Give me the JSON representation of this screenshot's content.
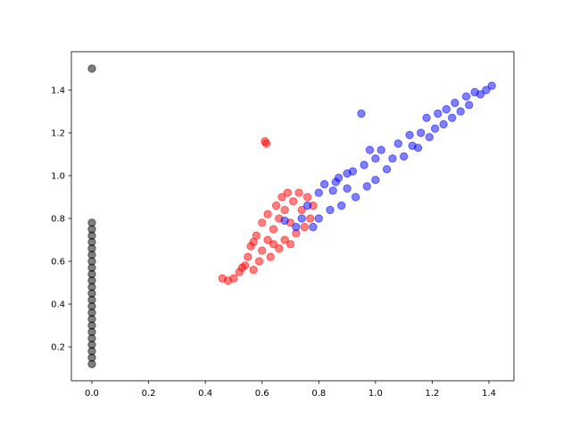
{
  "chart_data": {
    "type": "scatter",
    "xlim": [
      -0.0723,
      1.488
    ],
    "ylim": [
      0.042,
      1.579
    ],
    "xticks": [
      {
        "value": 0,
        "label": "0.0"
      },
      0.2,
      0.4,
      0.6,
      0.8,
      {
        "value": 1,
        "label": "1.0"
      },
      1.2,
      1.4
    ],
    "yticks": [
      0.2,
      0.4,
      0.6,
      0.8,
      {
        "value": 1,
        "label": "1.0"
      },
      1.2,
      1.4
    ],
    "alpha": 0.5,
    "series": [
      {
        "color": "#000000",
        "x": [
          0,
          0,
          0,
          0,
          0,
          0,
          0,
          0,
          0,
          0,
          0,
          0,
          0,
          0,
          0,
          0,
          0,
          0,
          0,
          0,
          0,
          0,
          0,
          0
        ],
        "y": [
          0.12,
          0.15,
          0.18,
          0.21,
          0.24,
          0.27,
          0.3,
          0.33,
          0.36,
          0.39,
          0.42,
          0.45,
          0.48,
          0.51,
          0.54,
          0.57,
          0.6,
          0.63,
          0.66,
          0.69,
          0.72,
          0.75,
          0.78,
          1.5
        ]
      },
      {
        "color": "#ff0000",
        "x": [
          0.46,
          0.48,
          0.5,
          0.52,
          0.54,
          0.55,
          0.56,
          0.57,
          0.58,
          0.59,
          0.6,
          0.6,
          0.62,
          0.62,
          0.63,
          0.64,
          0.65,
          0.66,
          0.66,
          0.67,
          0.68,
          0.68,
          0.69,
          0.7,
          0.7,
          0.71,
          0.72,
          0.73,
          0.74,
          0.75,
          0.76,
          0.77,
          0.78,
          0.61,
          0.615,
          0.53,
          0.57,
          0.64
        ],
        "y": [
          0.52,
          0.51,
          0.52,
          0.55,
          0.58,
          0.62,
          0.67,
          0.56,
          0.72,
          0.6,
          0.65,
          0.78,
          0.82,
          0.7,
          0.62,
          0.75,
          0.86,
          0.66,
          0.8,
          0.9,
          0.7,
          0.84,
          0.92,
          0.68,
          0.78,
          0.88,
          0.73,
          0.92,
          0.84,
          0.76,
          0.9,
          0.8,
          0.86,
          1.16,
          1.15,
          0.57,
          0.69,
          0.68
        ]
      },
      {
        "color": "#0000ff",
        "x": [
          0.68,
          0.72,
          0.74,
          0.76,
          0.78,
          0.8,
          0.8,
          0.82,
          0.84,
          0.85,
          0.87,
          0.88,
          0.9,
          0.92,
          0.93,
          0.95,
          0.96,
          0.97,
          1.0,
          1.0,
          1.02,
          1.04,
          1.06,
          1.08,
          1.1,
          1.12,
          1.13,
          1.15,
          1.16,
          1.18,
          1.19,
          1.21,
          1.22,
          1.24,
          1.25,
          1.27,
          1.28,
          1.3,
          1.32,
          1.33,
          1.35,
          1.37,
          1.39,
          1.41,
          0.98,
          0.9,
          0.86
        ],
        "y": [
          0.79,
          0.76,
          0.8,
          0.86,
          0.76,
          0.92,
          0.8,
          0.96,
          0.84,
          0.93,
          0.99,
          0.86,
          0.94,
          1.02,
          0.9,
          1.29,
          1.05,
          0.95,
          1.08,
          0.98,
          1.12,
          1.03,
          1.08,
          1.15,
          1.09,
          1.19,
          1.14,
          1.13,
          1.2,
          1.27,
          1.18,
          1.22,
          1.29,
          1.24,
          1.31,
          1.27,
          1.34,
          1.3,
          1.37,
          1.33,
          1.39,
          1.38,
          1.4,
          1.42,
          1.12,
          1.01,
          0.97
        ]
      }
    ]
  }
}
